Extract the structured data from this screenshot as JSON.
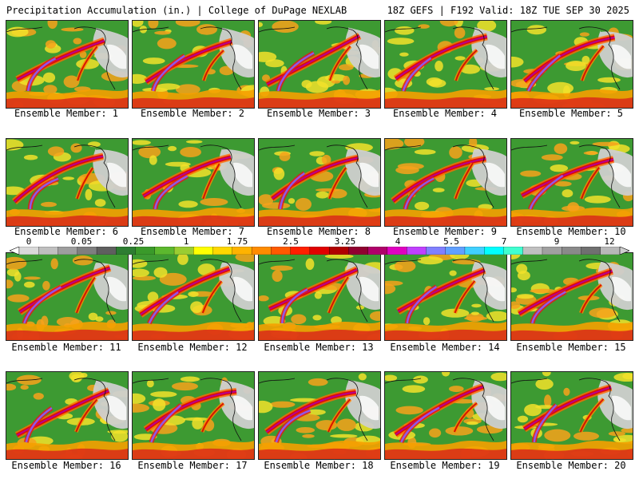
{
  "header": {
    "left": "Precipitation Accumulation (in.) | College of DuPage NEXLAB",
    "right": "18Z GEFS | F192 Valid: 18Z TUE SEP 30 2025"
  },
  "colorbar": {
    "labels": [
      "0",
      "0.05",
      "0.25",
      "1",
      "1.75",
      "2.5",
      "3.25",
      "4",
      "5.5",
      "7",
      "9",
      "12"
    ],
    "colors": [
      "#d9d9d9",
      "#bfbfbf",
      "#9e9e9e",
      "#7f7f7f",
      "#5f5f5f",
      "#2e7d32",
      "#3a9a2a",
      "#5cb82e",
      "#9acd32",
      "#ffff00",
      "#ffd700",
      "#ffb300",
      "#ff8c00",
      "#ff5a00",
      "#ff2000",
      "#e00000",
      "#b00000",
      "#900030",
      "#b0006a",
      "#e000c0",
      "#c040ff",
      "#8080ff",
      "#60a0ff",
      "#40d0ff",
      "#00ffff",
      "#40ffd0",
      "#c0c0c0",
      "#a0a0a0",
      "#8a8a8a",
      "#707070",
      "#b8b8b8"
    ]
  },
  "members": [
    {
      "label": "Ensemble Member: 1"
    },
    {
      "label": "Ensemble Member: 2"
    },
    {
      "label": "Ensemble Member: 3"
    },
    {
      "label": "Ensemble Member: 4"
    },
    {
      "label": "Ensemble Member: 5"
    },
    {
      "label": "Ensemble Member: 6"
    },
    {
      "label": "Ensemble Member: 7"
    },
    {
      "label": "Ensemble Member: 8"
    },
    {
      "label": "Ensemble Member: 9"
    },
    {
      "label": "Ensemble Member: 10"
    },
    {
      "label": "Ensemble Member: 11"
    },
    {
      "label": "Ensemble Member: 12"
    },
    {
      "label": "Ensemble Member: 13"
    },
    {
      "label": "Ensemble Member: 14"
    },
    {
      "label": "Ensemble Member: 15"
    },
    {
      "label": "Ensemble Member: 16"
    },
    {
      "label": "Ensemble Member: 17"
    },
    {
      "label": "Ensemble Member: 18"
    },
    {
      "label": "Ensemble Member: 19"
    },
    {
      "label": "Ensemble Member: 20"
    }
  ]
}
